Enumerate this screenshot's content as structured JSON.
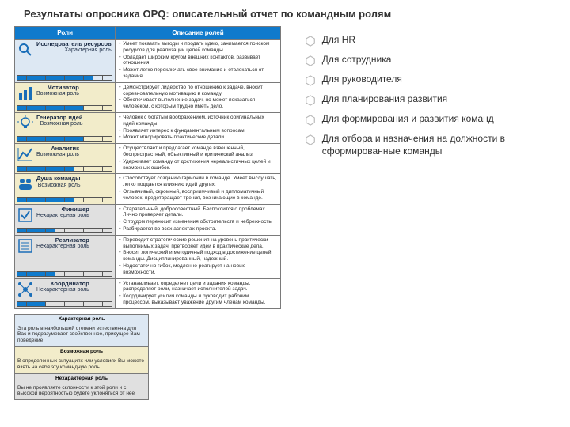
{
  "page_title": "Результаты опросника OPQ: описательный отчет по командным ролям",
  "table": {
    "type": "table",
    "header_bg": "#0f7acc",
    "header_text_color": "#ffffff",
    "columns": [
      "Роли",
      "Описание ролей"
    ],
    "score_max": 10,
    "category_colors": {
      "characteristic": "#dde8f3",
      "possible": "#f2ecca",
      "uncharacteristic": "#e0e0e0"
    },
    "rows": [
      {
        "icon": "search",
        "name": "Исследователь ресурсов",
        "type_label": "Характерная роль",
        "category": "characteristic",
        "score": 8,
        "desc": [
          "Умеет показать выгоды и продать идею, занимается поиском ресурсов для реализации целей команды.",
          "Обладает широким кругом внешних контактов, развивает отношения.",
          "Может легко переключать свое внимание и отвлекаться от задания."
        ]
      },
      {
        "icon": "bars",
        "name": "Мотиватор",
        "type_label": "Возможная роль",
        "category": "possible",
        "score": 7,
        "desc": [
          "Демонстрирует лидерство по отношению к задаче, вносит соревновательную мотивацию в команду.",
          "Обеспечивает выполнение задач, но может показаться человеком, с которым трудно иметь дело."
        ]
      },
      {
        "icon": "bulb",
        "name": "Генератор идей",
        "type_label": "Возможная роль",
        "category": "possible",
        "score": 7,
        "desc": [
          "Человек с богатым воображением, источник оригинальных идей команды.",
          "Проявляет интерес к фундаментальным вопросам.",
          "Может игнорировать практические детали."
        ]
      },
      {
        "icon": "chart",
        "name": "Аналитик",
        "type_label": "Возможная роль",
        "category": "possible",
        "score": 6,
        "desc": [
          "Осуществляет и предлагает команде взвешенный, беспристрастный, объективный и критический анализ.",
          "Удерживает команду от достижения нереалистичных целей и возможных ошибок."
        ]
      },
      {
        "icon": "team",
        "name": "Душа команды",
        "type_label": "Возможная роль",
        "category": "possible",
        "score": 6,
        "desc": [
          "Способствует созданию гармонии в команде. Умеет выслушать, легко поддается влиянию идей других.",
          "Отзывчивый, скромный, восприимчивый и дипломатичный человек, предотвращает трения, возникающие в команде."
        ]
      },
      {
        "icon": "check",
        "name": "Финишер",
        "type_label": "Нехарактерная роль",
        "category": "uncharacteristic",
        "score": 4,
        "desc": [
          "Старательный, добросовестный. Беспокоится о проблемах. Лично проверяет детали.",
          "С трудом переносит изменения обстоятельств и небрежность.",
          "Разбирается во всех аспектах проекта."
        ]
      },
      {
        "icon": "list",
        "name": "Реализатор",
        "type_label": "Нехарактерная роль",
        "category": "uncharacteristic",
        "score": 4,
        "desc": [
          "Переводит стратегические решения на уровень практически выполнимых задач, претворяет идеи в практические дела.",
          "Вносит логический и методичный подход в достижение целей команды. Дисциплинированный, надежный.",
          "Недостаточно гибок, медленно реагирует на новые возможности."
        ]
      },
      {
        "icon": "coord",
        "name": "Координатор",
        "type_label": "Нехарактерная роль",
        "category": "uncharacteristic",
        "score": 3,
        "desc": [
          "Устанавливает, определяет цели и задания команды, распределяет роли, назначает исполнителей задач.",
          "Координирует усилия команды и руководит рабочим процессом, выказывает уважение другим членам команды."
        ]
      }
    ]
  },
  "legend": [
    {
      "title": "Характерная роль",
      "category": "characteristic",
      "text": "Эта роль в наибольшей степени естественна для Вас и подразумевает свойственное, присущее Вам поведение"
    },
    {
      "title": "Возможная роль",
      "category": "possible",
      "text": "В определенных ситуациях или условиях Вы можете взять на себя эту командную роль"
    },
    {
      "title": "Нехарактерная роль",
      "category": "uncharacteristic",
      "text": "Вы не проявляете склонности к этой роли и с высокой вероятностью будете уклоняться от нее"
    }
  ],
  "audiences": [
    "Для HR",
    "Для сотрудника",
    "Для руководителя",
    "Для планирования развития",
    "Для формирования и развития команд",
    "Для отбора и назначения на должности в сформированные команды"
  ],
  "colors": {
    "accent": "#0f7acc",
    "hex_border": "#b8b8b8"
  }
}
